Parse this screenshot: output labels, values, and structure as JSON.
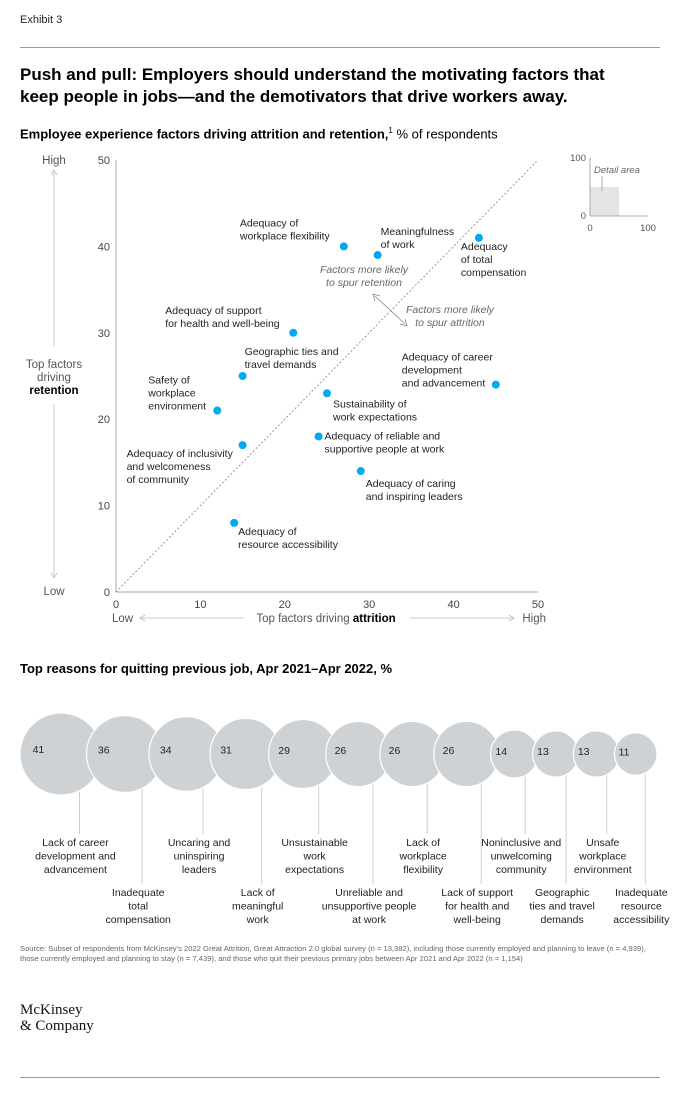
{
  "exhibit_label": "Exhibit 3",
  "headline": "Push and pull: Employers should understand the motivating factors that keep people in jobs—and the demotivators that drive workers away.",
  "chart1": {
    "title_bold": "Employee experience factors driving attrition and retention,",
    "title_sup": "1",
    "title_rest": " % of respondents",
    "y_high": "High",
    "y_low": "Low",
    "y_label_lines": [
      "Top factors",
      "driving"
    ],
    "y_label_bold": "retention",
    "x_low": "Low",
    "x_high": "High",
    "x_label_plain": "Top factors driving ",
    "x_label_bold": "attrition",
    "retention_note": [
      "Factors more likely",
      "to spur retention"
    ],
    "attrition_note": [
      "Factors more likely",
      "to spur attrition"
    ],
    "inset_label": "Detail area",
    "inset_ticks": {
      "y_top": "100",
      "y_bottom": "0",
      "x_left": "0",
      "x_right": "100"
    }
  },
  "chart_data": [
    {
      "type": "scatter",
      "xlim": [
        0,
        50
      ],
      "ylim": [
        0,
        50
      ],
      "xticks": [
        0,
        10,
        20,
        30,
        40,
        50
      ],
      "yticks": [
        0,
        10,
        20,
        30,
        40,
        50
      ],
      "grid": false,
      "diagonal_reference_line": true,
      "points": [
        {
          "label": [
            "Adequacy of",
            "workplace flexibility"
          ],
          "x": 27,
          "y": 40
        },
        {
          "label": [
            "Meaningfulness",
            "of work"
          ],
          "x": 31,
          "y": 39
        },
        {
          "label": [
            "Adequacy",
            "of total",
            "compensation"
          ],
          "x": 43,
          "y": 41
        },
        {
          "label": [
            "Adequacy of support",
            "for health and well-being"
          ],
          "x": 21,
          "y": 30
        },
        {
          "label": [
            "Geographic ties and",
            "travel demands"
          ],
          "x": 15,
          "y": 25
        },
        {
          "label": [
            "Adequacy of career",
            "development",
            "and advancement"
          ],
          "x": 45,
          "y": 24
        },
        {
          "label": [
            "Safety of",
            "workplace",
            "environment"
          ],
          "x": 12,
          "y": 21
        },
        {
          "label": [
            "Sustainability of",
            "work expectations"
          ],
          "x": 25,
          "y": 23
        },
        {
          "label": [
            "Adequacy of inclusivity",
            "and welcomeness",
            "of community"
          ],
          "x": 15,
          "y": 17
        },
        {
          "label": [
            "Adequacy of reliable and",
            "supportive people at work"
          ],
          "x": 24,
          "y": 18
        },
        {
          "label": [
            "Adequacy of caring",
            "and inspiring leaders"
          ],
          "x": 29,
          "y": 14
        },
        {
          "label": [
            "Adequacy of",
            "resource accessibility"
          ],
          "x": 14,
          "y": 8
        }
      ]
    },
    {
      "type": "bubble",
      "title": "Top reasons for quitting previous job, Apr 2021–Apr 2022, %",
      "items": [
        {
          "label": [
            "Lack of career",
            "development and",
            "advancement"
          ],
          "value": 41
        },
        {
          "label": [
            "Inadequate",
            "total",
            "compensation"
          ],
          "value": 36
        },
        {
          "label": [
            "Uncaring and",
            "uninspiring",
            "leaders"
          ],
          "value": 34
        },
        {
          "label": [
            "Lack of",
            "meaningful",
            "work"
          ],
          "value": 31
        },
        {
          "label": [
            "Unsustainable",
            "work",
            "expectations"
          ],
          "value": 29
        },
        {
          "label": [
            "Unreliable and",
            "unsupportive people",
            "at work"
          ],
          "value": 26
        },
        {
          "label": [
            "Lack of",
            "workplace",
            "flexibility"
          ],
          "value": 26
        },
        {
          "label": [
            "Lack of support",
            "for health and",
            "well-being"
          ],
          "value": 26
        },
        {
          "label": [
            "Noninclusive and",
            "unwelcoming",
            "community"
          ],
          "value": 14
        },
        {
          "label": [
            "Geographic",
            "ties and travel",
            "demands"
          ],
          "value": 13
        },
        {
          "label": [
            "Unsafe",
            "workplace",
            "environment"
          ],
          "value": 13
        },
        {
          "label": [
            "Inadequate",
            "resource",
            "accessibility"
          ],
          "value": 11
        }
      ]
    }
  ],
  "source": "Source: Subset of respondents from McKinsey’s 2022 Great Attrition, Great Attraction 2.0 global survey (n = 13,382), including those currently employed and planning to leave (n = 4,939), those currently employed and planning to stay (n = 7,439), and those who quit their previous primary jobs between Apr 2021 and Apr 2022 (n = 1,154)",
  "logo_lines": [
    "McKinsey",
    "& Company"
  ],
  "colors": {
    "accent": "#00a9f4",
    "bubble": "#cfd2d4",
    "axis": "#aaaaaa",
    "text": "#111111"
  }
}
